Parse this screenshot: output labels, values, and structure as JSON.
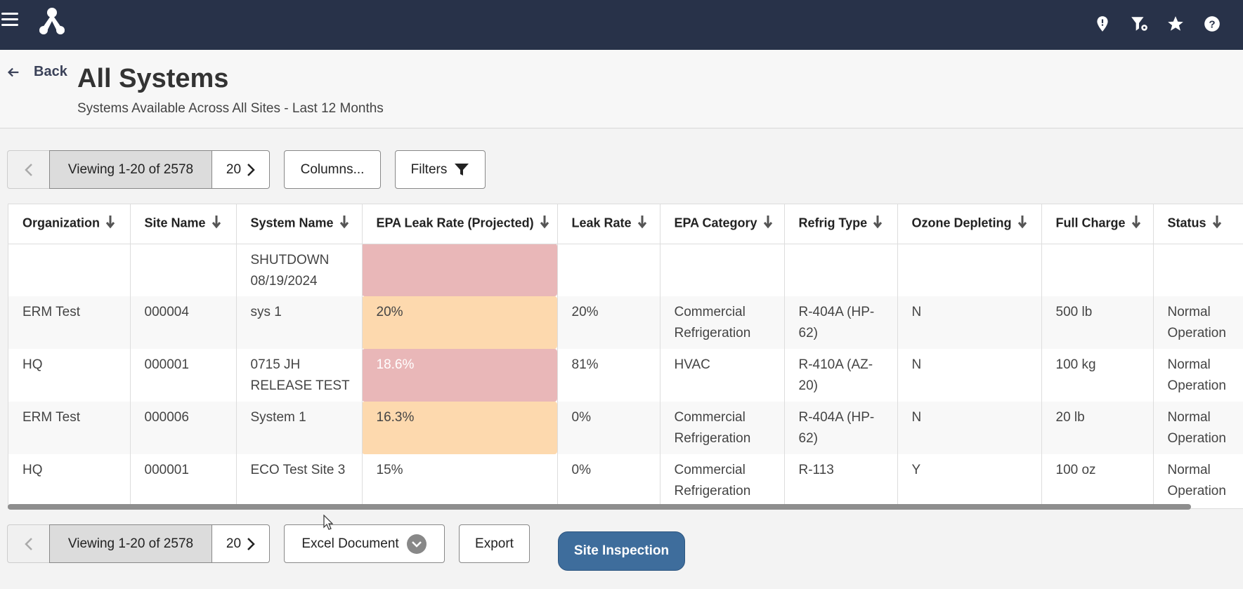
{
  "topbar": {
    "icons": [
      "menu-icon",
      "logo-icon",
      "map-pin-icon",
      "filter-settings-icon",
      "star-icon",
      "help-icon"
    ],
    "bg_color": "#283249"
  },
  "header": {
    "back_label": "Back",
    "title": "All Systems",
    "subtitle": "Systems Available Across All Sites - Last 12 Months"
  },
  "toolbar": {
    "viewing": "Viewing 1-20 of 2578",
    "page_size": "20",
    "columns_label": "Columns...",
    "filters_label": "Filters"
  },
  "table": {
    "columns": [
      "Organization",
      "Site Name",
      "System Name",
      "EPA Leak Rate (Projected)",
      "Leak Rate",
      "EPA Category",
      "Refrig Type",
      "Ozone Depleting",
      "Full Charge",
      "Status"
    ],
    "rows": [
      {
        "organization": "",
        "site": "",
        "system": "SHUTDOWN 08/19/2024",
        "epa_rate": "",
        "leak_rate": "",
        "category": "",
        "refrig": "",
        "ozone": "",
        "charge": "",
        "status": "",
        "rate_color": "red"
      },
      {
        "organization": "ERM Test",
        "site": "000004",
        "system": "sys 1",
        "epa_rate": "20%",
        "leak_rate": "20%",
        "category": "Commercial Refrigeration",
        "refrig": "R-404A (HP-62)",
        "ozone": "N",
        "charge": "500 lb",
        "status": "Normal Operation",
        "rate_color": "orange"
      },
      {
        "organization": "HQ",
        "site": "000001",
        "system": "0715 JH RELEASE TEST",
        "epa_rate": "18.6%",
        "leak_rate": "81%",
        "category": "HVAC",
        "refrig": "R-410A (AZ-20)",
        "ozone": "N",
        "charge": "100 kg",
        "status": "Normal Operation",
        "rate_color": "red"
      },
      {
        "organization": "ERM Test",
        "site": "000006",
        "system": "System 1",
        "epa_rate": "16.3%",
        "leak_rate": "0%",
        "category": "Commercial Refrigeration",
        "refrig": "R-404A (HP-62)",
        "ozone": "N",
        "charge": "20 lb",
        "status": "Normal Operation",
        "rate_color": "orange"
      },
      {
        "organization": "HQ",
        "site": "000001",
        "system": "ECO Test Site 3",
        "epa_rate": "15%",
        "leak_rate": "0%",
        "category": "Commercial Refrigeration",
        "refrig": "R-113",
        "ozone": "Y",
        "charge": "100 oz",
        "status": "Normal Operation",
        "rate_color": "none"
      }
    ],
    "colors": {
      "red": "#e9b7b8",
      "orange": "#fdd9ae"
    }
  },
  "footer": {
    "viewing": "Viewing 1-20 of 2578",
    "page_size": "20",
    "export_format": "Excel Document",
    "export_label": "Export",
    "site_inspection_label": "Site Inspection",
    "accent_color": "#3e6d9c"
  }
}
